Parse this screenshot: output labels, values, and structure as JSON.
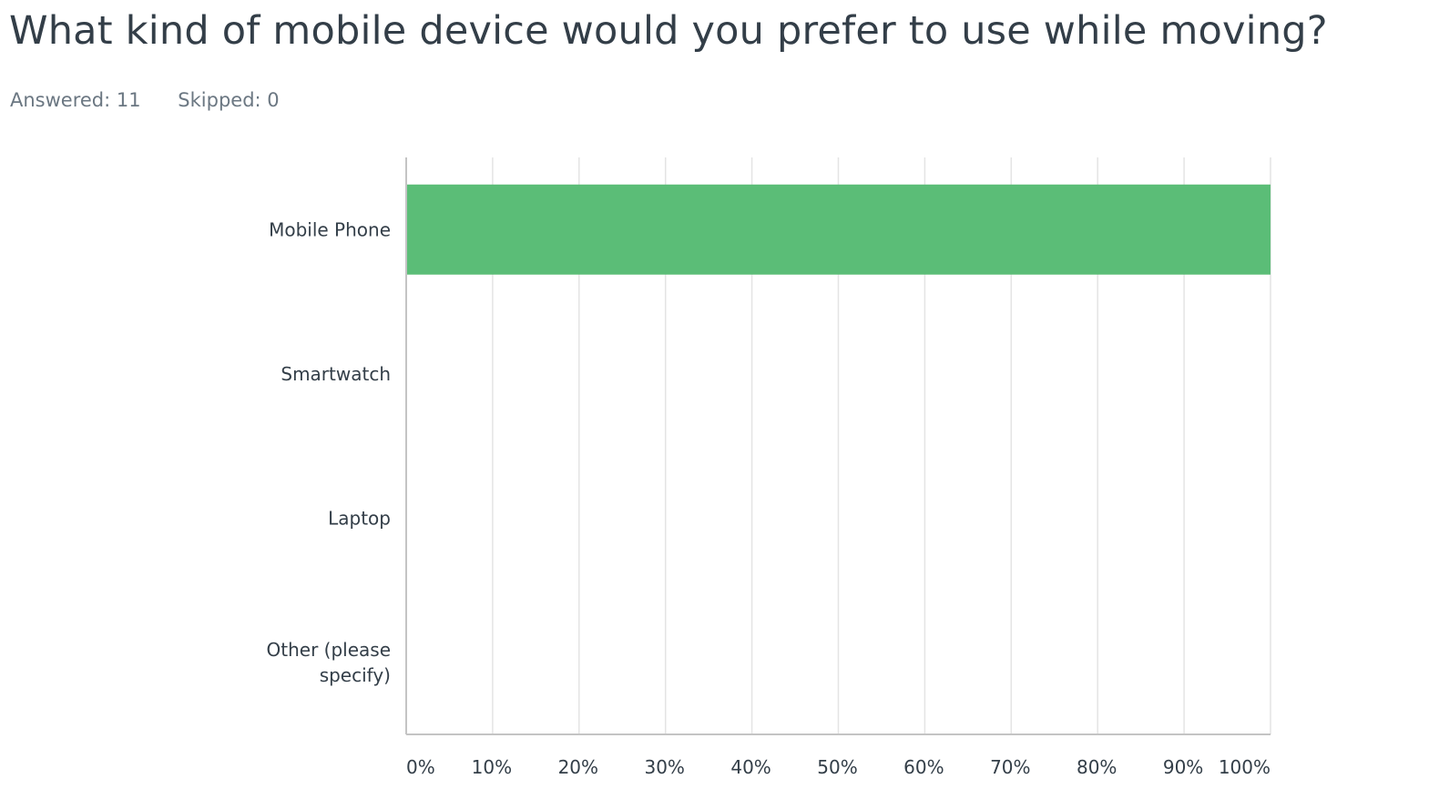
{
  "question": {
    "title": "What kind of mobile device would you prefer to use while moving?",
    "answered": "Answered: 11",
    "skipped": "Skipped: 0"
  },
  "colors": {
    "bar": "#5bbd77",
    "grid": "#e4e4e4",
    "axis": "#c4c4c4",
    "text": "#333e48",
    "muted": "#6b7782"
  },
  "chart_data": {
    "type": "bar",
    "orientation": "horizontal",
    "categories": [
      "Mobile Phone",
      "Smartwatch",
      "Laptop",
      "Other (please specify)"
    ],
    "category_label_lines": [
      [
        "Mobile Phone"
      ],
      [
        "Smartwatch"
      ],
      [
        "Laptop"
      ],
      [
        "Other (please",
        "specify)"
      ]
    ],
    "values": [
      100,
      0,
      0,
      0
    ],
    "xlim": [
      0,
      100
    ],
    "xticks": [
      0,
      10,
      20,
      30,
      40,
      50,
      60,
      70,
      80,
      90,
      100
    ],
    "xtick_labels": [
      "0%",
      "10%",
      "20%",
      "30%",
      "40%",
      "50%",
      "60%",
      "70%",
      "80%",
      "90%",
      "100%"
    ],
    "grid": true,
    "legend": "none"
  }
}
